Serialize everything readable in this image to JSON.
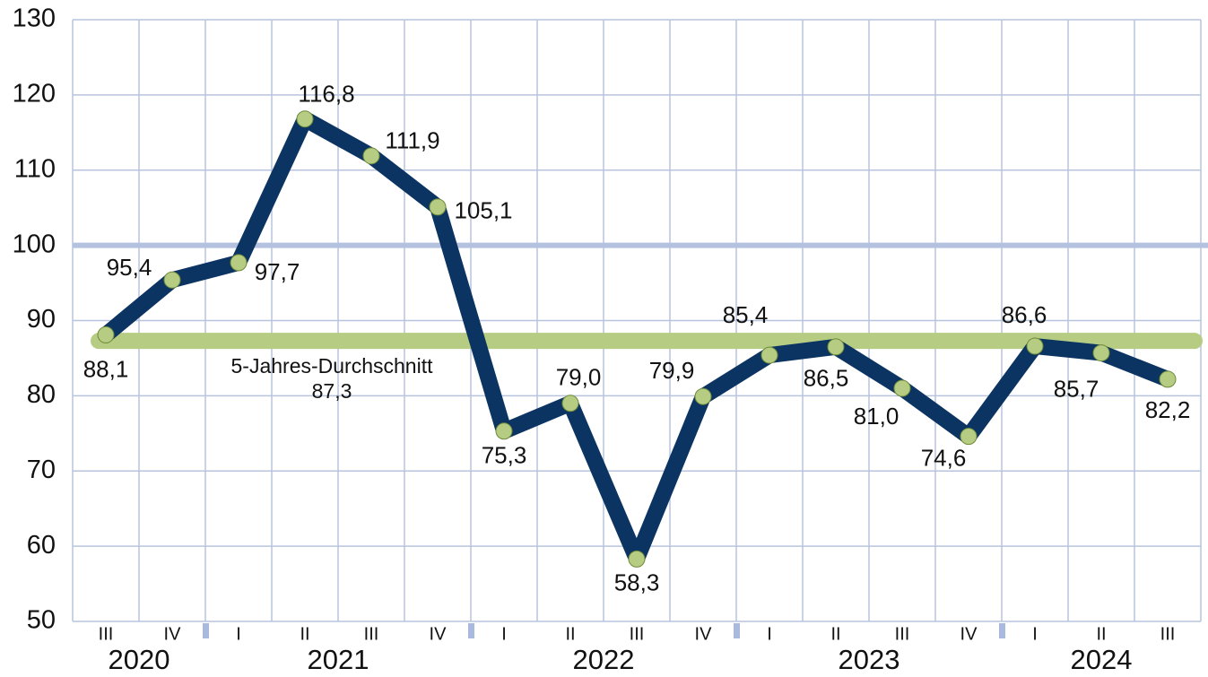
{
  "chart_data": {
    "type": "line",
    "categories": [
      "III",
      "IV",
      "I",
      "II",
      "III",
      "IV",
      "I",
      "II",
      "III",
      "IV",
      "I",
      "II",
      "III",
      "IV",
      "I",
      "II",
      "III"
    ],
    "year_groups": [
      {
        "label": "2020",
        "span": 2
      },
      {
        "label": "2021",
        "span": 4
      },
      {
        "label": "2022",
        "span": 4
      },
      {
        "label": "2023",
        "span": 4
      },
      {
        "label": "2024",
        "span": 3
      }
    ],
    "series": [
      {
        "color": "#0b3462",
        "marker_color": "#b5cc82",
        "values": [
          88.1,
          95.4,
          97.7,
          116.8,
          111.9,
          105.1,
          75.3,
          79.0,
          58.3,
          79.9,
          85.4,
          86.5,
          81.0,
          74.6,
          86.6,
          85.7,
          82.2
        ],
        "value_labels": [
          "88,1",
          "95,4",
          "97,7",
          "116,8",
          "111,9",
          "105,1",
          "75,3",
          "79,0",
          "58,3",
          "79,9",
          "85,4",
          "86,5",
          "81,0",
          "74,6",
          "86,6",
          "85,7",
          "82,2"
        ]
      }
    ],
    "reference_line": {
      "value": 100,
      "color": "#b4c2e0"
    },
    "average": {
      "value": 87.3,
      "label": "5-Jahres-Durchschnitt",
      "value_label": "87,3",
      "color": "#b5cc82"
    },
    "ylim": [
      50,
      130
    ],
    "yticks": [
      50,
      60,
      70,
      80,
      90,
      100,
      110,
      120,
      130
    ],
    "grid": true
  }
}
